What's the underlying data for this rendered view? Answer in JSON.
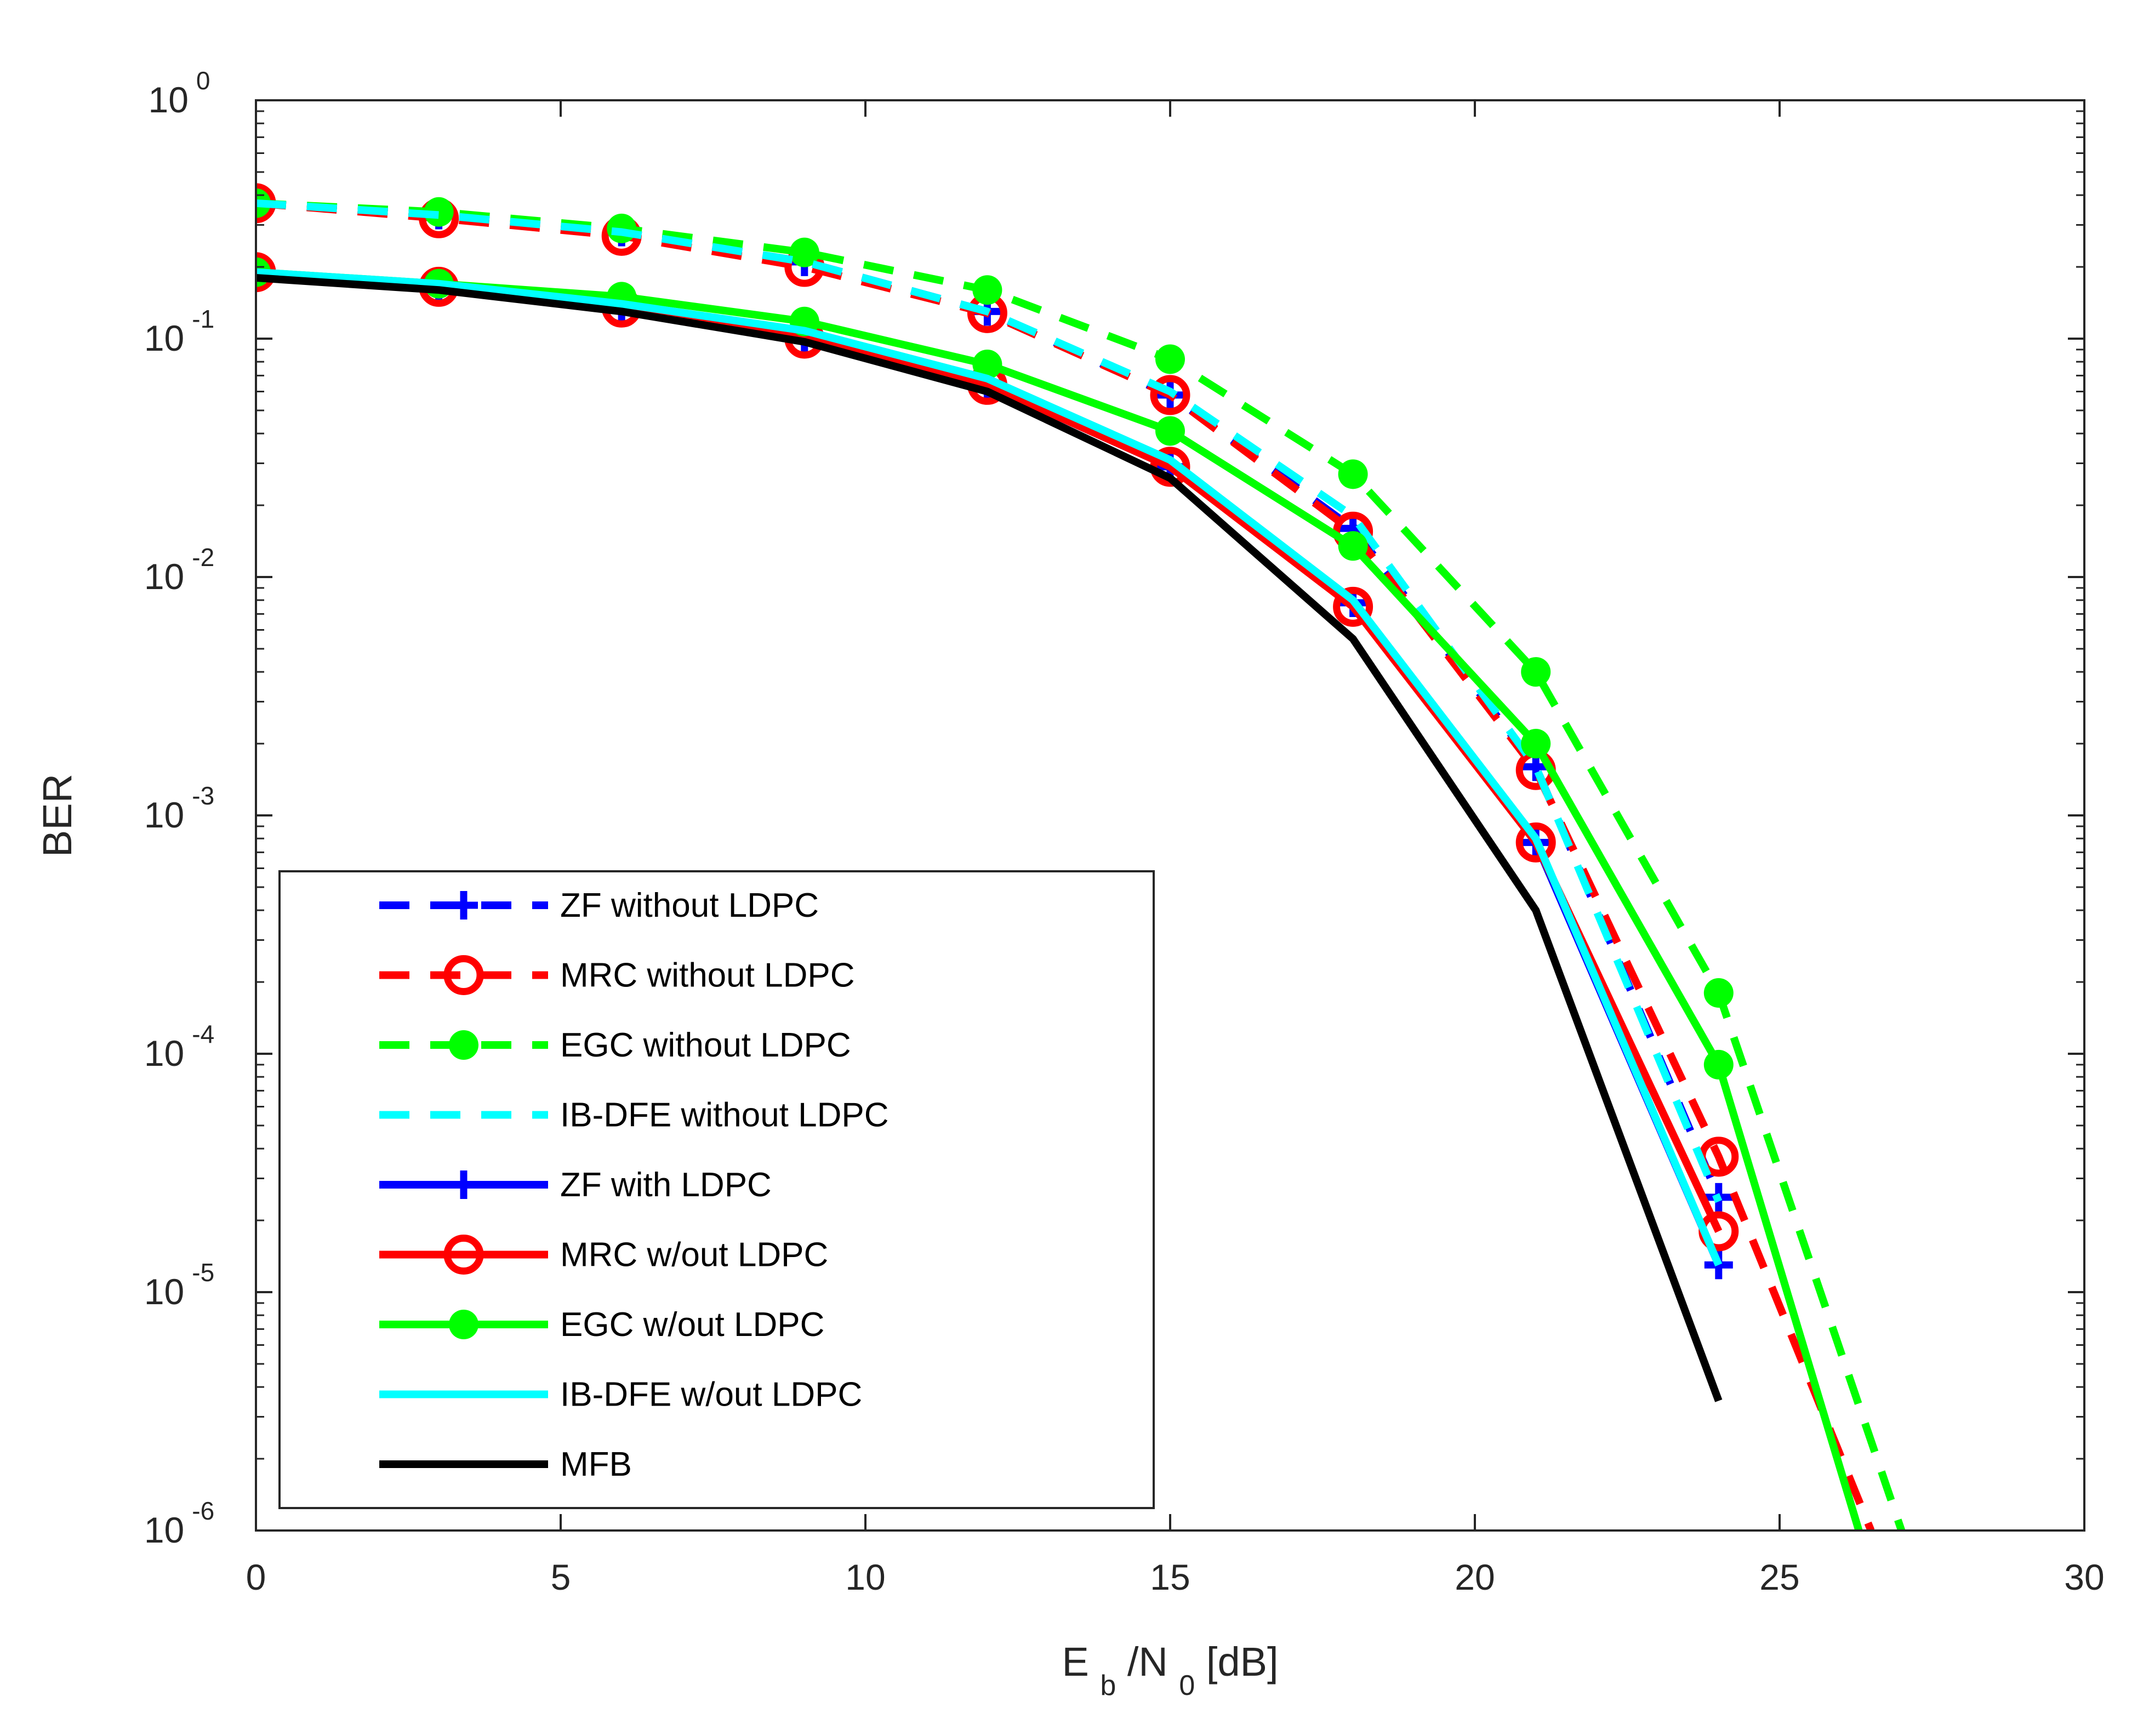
{
  "chart_data": {
    "type": "line",
    "title": "",
    "xscale": "linear",
    "yscale": "log",
    "xlim": [
      0,
      30
    ],
    "ylim": [
      1e-06,
      1
    ],
    "grid": false,
    "legend_position": "bottom-left",
    "xlabel": {
      "main": "E",
      "sub1": "b",
      "mid": "/N",
      "sub2": "0",
      "end": " [dB]"
    },
    "ylabel": "BER",
    "xticks": [
      {
        "value": 0,
        "label": "0"
      },
      {
        "value": 5,
        "label": "5"
      },
      {
        "value": 10,
        "label": "10"
      },
      {
        "value": 15,
        "label": "15"
      },
      {
        "value": 20,
        "label": "20"
      },
      {
        "value": 25,
        "label": "25"
      },
      {
        "value": 30,
        "label": "30"
      }
    ],
    "yticks": [
      {
        "value": 1,
        "base": "10",
        "exp": "0"
      },
      {
        "value": 0.1,
        "base": "10",
        "exp": "-1"
      },
      {
        "value": 0.01,
        "base": "10",
        "exp": "-2"
      },
      {
        "value": 0.001,
        "base": "10",
        "exp": "-3"
      },
      {
        "value": 0.0001,
        "base": "10",
        "exp": "-4"
      },
      {
        "value": 1e-05,
        "base": "10",
        "exp": "-5"
      },
      {
        "value": 1e-06,
        "base": "10",
        "exp": "-6"
      }
    ],
    "series": [
      {
        "name": "ZF without LDPC",
        "color": "#0000ff",
        "dash": "dashed",
        "marker": "plus",
        "x": [
          0,
          3,
          6,
          9,
          12,
          15,
          18,
          21,
          24
        ],
        "y": [
          0.37,
          0.33,
          0.28,
          0.21,
          0.13,
          0.058,
          0.016,
          0.0016,
          2.5e-05
        ]
      },
      {
        "name": "MRC without LDPC",
        "color": "#ff0000",
        "dash": "dashed",
        "marker": "circle",
        "x": [
          0,
          3,
          6,
          9,
          12,
          15,
          18,
          21,
          24,
          26.5
        ],
        "y": [
          0.37,
          0.32,
          0.27,
          0.2,
          0.128,
          0.058,
          0.0155,
          0.00155,
          3.7e-05,
          1e-06
        ]
      },
      {
        "name": "EGC without LDPC",
        "color": "#00ff00",
        "dash": "dashed",
        "marker": "dot",
        "x": [
          0,
          3,
          6,
          9,
          12,
          15,
          18,
          21,
          24,
          27
        ],
        "y": [
          0.37,
          0.34,
          0.29,
          0.23,
          0.16,
          0.082,
          0.027,
          0.004,
          0.00018,
          1e-06
        ]
      },
      {
        "name": "IB-DFE without LDPC",
        "color": "#00ffff",
        "dash": "dashed",
        "marker": "none",
        "x": [
          0,
          3,
          6,
          9,
          12,
          15,
          18,
          21,
          24
        ],
        "y": [
          0.37,
          0.33,
          0.28,
          0.21,
          0.13,
          0.06,
          0.018,
          0.0016,
          2.4e-05
        ]
      },
      {
        "name": "ZF with LDPC",
        "color": "#0000ff",
        "dash": "solid",
        "marker": "plus",
        "x": [
          0,
          3,
          6,
          9,
          12,
          15,
          18,
          21,
          24
        ],
        "y": [
          0.19,
          0.165,
          0.135,
          0.1,
          0.064,
          0.029,
          0.0078,
          0.00077,
          1.3e-05
        ]
      },
      {
        "name": "MRC w/out LDPC",
        "color": "#ff0000",
        "dash": "solid",
        "marker": "circle",
        "x": [
          0,
          3,
          6,
          9,
          12,
          15,
          18,
          21,
          24
        ],
        "y": [
          0.19,
          0.165,
          0.135,
          0.1,
          0.064,
          0.029,
          0.0075,
          0.00077,
          1.8e-05
        ]
      },
      {
        "name": "EGC w/out LDPC",
        "color": "#00ff00",
        "dash": "solid",
        "marker": "dot",
        "x": [
          0,
          3,
          6,
          9,
          12,
          15,
          18,
          21,
          24,
          26.3
        ],
        "y": [
          0.19,
          0.17,
          0.15,
          0.118,
          0.078,
          0.041,
          0.0135,
          0.002,
          9e-05,
          1e-06
        ]
      },
      {
        "name": "IB-DFE w/out LDPC",
        "color": "#00ffff",
        "dash": "solid",
        "marker": "none",
        "x": [
          0,
          3,
          6,
          9,
          12,
          15,
          18,
          21,
          24
        ],
        "y": [
          0.19,
          0.17,
          0.14,
          0.108,
          0.068,
          0.031,
          0.008,
          0.0008,
          1.3e-05
        ]
      },
      {
        "name": "MFB",
        "color": "#000000",
        "dash": "solid",
        "marker": "none",
        "x": [
          0,
          3,
          6,
          9,
          12,
          15,
          18,
          21,
          24
        ],
        "y": [
          0.18,
          0.16,
          0.13,
          0.097,
          0.06,
          0.026,
          0.0055,
          0.0004,
          3.5e-06
        ]
      }
    ]
  }
}
